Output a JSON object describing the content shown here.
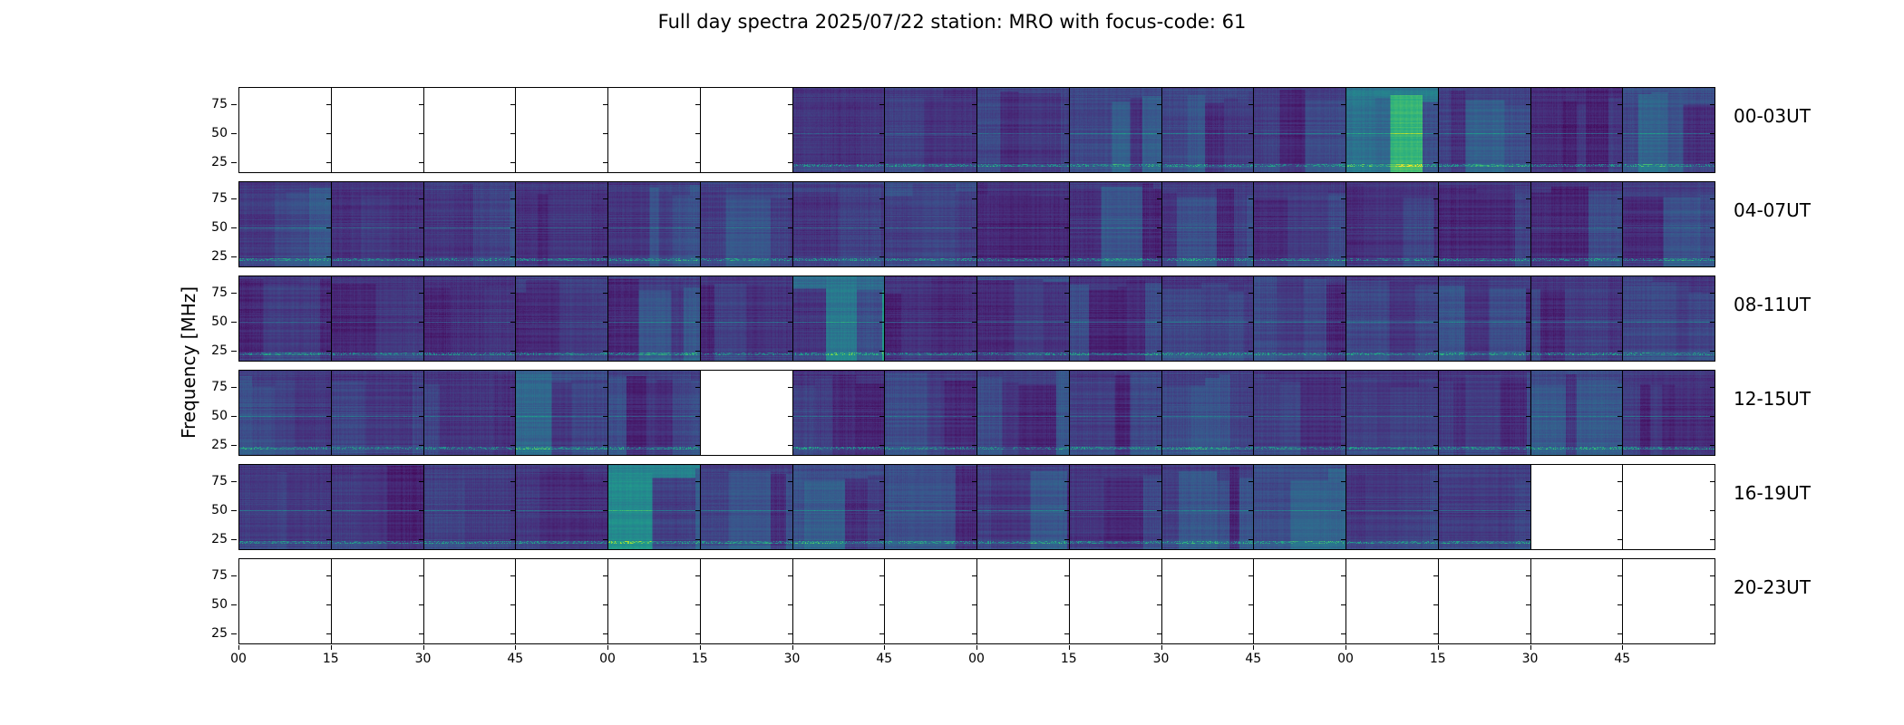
{
  "chart_data": {
    "type": "heatmap",
    "title": "Full day spectra 2025/07/22 station: MRO with focus-code: 61",
    "ylabel": "Frequency [MHz]",
    "xlabel": "",
    "ylim": [
      15.6,
      90
    ],
    "yticks": [
      "75",
      "50",
      "25"
    ],
    "ytick_values": [
      75,
      50,
      25
    ],
    "xtick_labels": [
      "00",
      "15",
      "30",
      "45",
      "00",
      "15",
      "30",
      "45",
      "00",
      "15",
      "30",
      "45",
      "00",
      "15",
      "30",
      "45"
    ],
    "colormap": "viridis",
    "rows": [
      {
        "label": "00-03UT",
        "panels": [
          null,
          null,
          null,
          null,
          null,
          null,
          0.15,
          0.2,
          0.25,
          0.25,
          0.25,
          0.2,
          0.6,
          0.25,
          0.1,
          0.3
        ]
      },
      {
        "label": "04-07UT",
        "panels": [
          0.2,
          0.15,
          0.2,
          0.15,
          0.2,
          0.25,
          0.2,
          0.3,
          0.12,
          0.2,
          0.2,
          0.15,
          0.15,
          0.15,
          0.2,
          0.2
        ]
      },
      {
        "label": "08-11UT",
        "panels": [
          0.15,
          0.15,
          0.15,
          0.2,
          0.2,
          0.15,
          0.5,
          0.15,
          0.35,
          0.15,
          0.15,
          0.15,
          0.15,
          0.2,
          0.15,
          0.15
        ]
      },
      {
        "label": "12-15UT",
        "panels": [
          0.2,
          0.15,
          0.15,
          0.3,
          0.2,
          null,
          0.15,
          0.2,
          0.2,
          0.15,
          0.2,
          0.15,
          0.15,
          0.15,
          0.3,
          0.15
        ]
      },
      {
        "label": "16-19UT",
        "panels": [
          0.15,
          0.15,
          0.2,
          0.15,
          0.65,
          0.2,
          0.3,
          0.3,
          0.2,
          0.15,
          0.2,
          0.3,
          0.15,
          0.2,
          null,
          null
        ]
      },
      {
        "label": "20-23UT",
        "panels": [
          null,
          null,
          null,
          null,
          null,
          null,
          null,
          null,
          null,
          null,
          null,
          null,
          null,
          null,
          null,
          null
        ]
      }
    ]
  }
}
